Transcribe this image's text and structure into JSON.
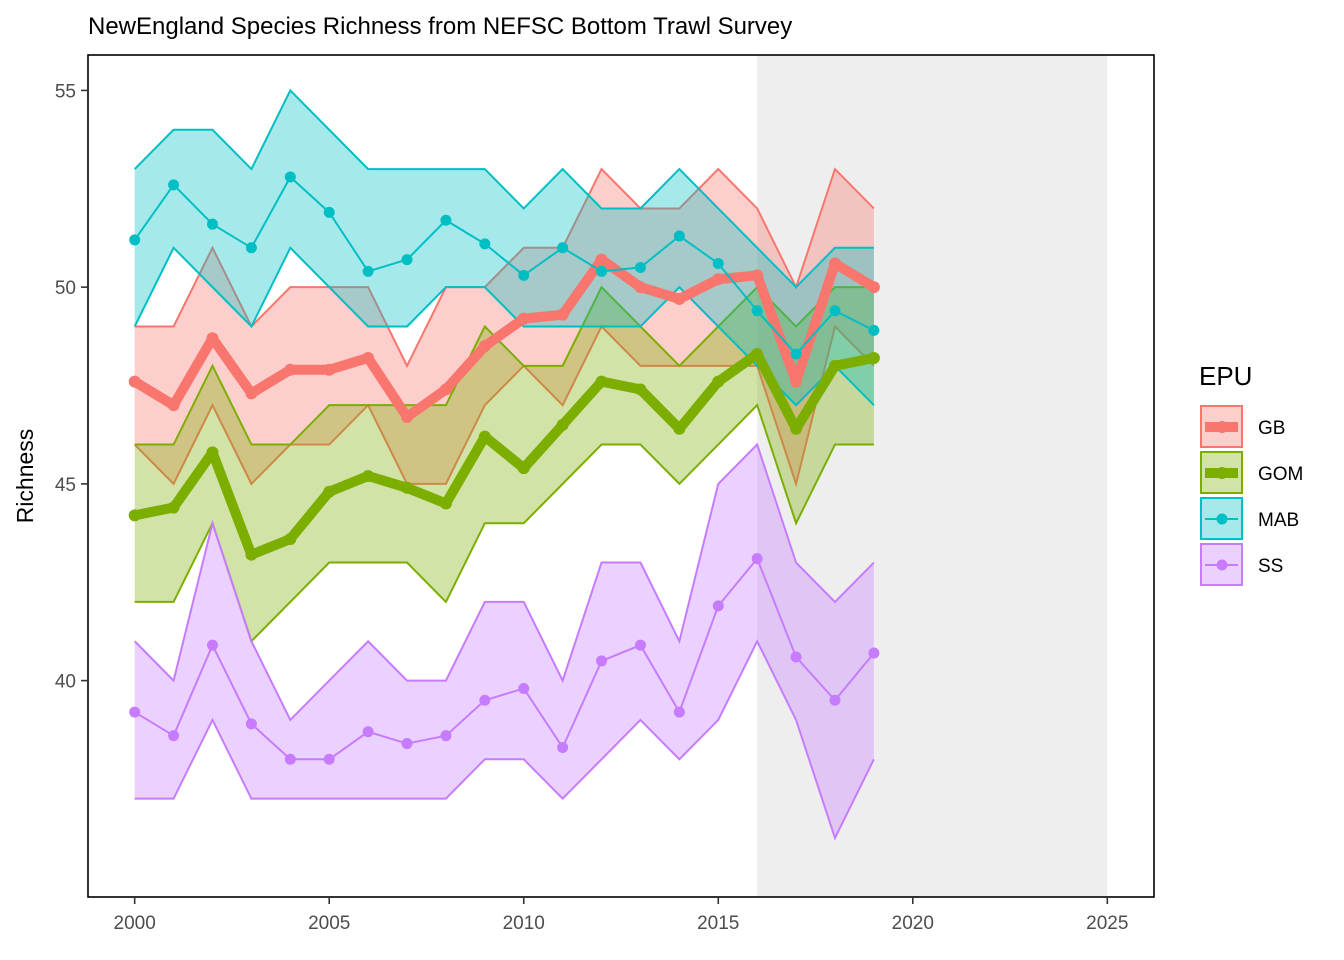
{
  "chart_data": {
    "type": "line",
    "title": "NewEngland Species Richness from NEFSC Bottom Trawl Survey",
    "xlabel": "",
    "ylabel": "Richness",
    "xlim": [
      1998.8,
      2026.2
    ],
    "ylim": [
      34.5,
      55.9
    ],
    "x_ticks": [
      2000,
      2005,
      2010,
      2015,
      2020,
      2025
    ],
    "y_ticks": [
      40,
      45,
      50,
      55
    ],
    "grid": false,
    "shaded_region": {
      "x_start": 2016,
      "x_end": 2025,
      "color": "#eeeeee"
    },
    "legend": {
      "title": "EPU",
      "position": "right"
    },
    "x": [
      2000,
      2001,
      2002,
      2003,
      2004,
      2005,
      2006,
      2007,
      2008,
      2009,
      2010,
      2011,
      2012,
      2013,
      2014,
      2015,
      2016,
      2017,
      2018,
      2019
    ],
    "series": [
      {
        "name": "GB",
        "color": "#F8766D",
        "style": "thick",
        "values": [
          47.6,
          47.0,
          48.7,
          47.3,
          47.9,
          47.9,
          48.2,
          46.7,
          47.4,
          48.5,
          49.2,
          49.3,
          50.7,
          50.0,
          49.7,
          50.2,
          50.3,
          47.6,
          50.6,
          50.0
        ],
        "lower": [
          46.0,
          45.0,
          47.0,
          45.0,
          46.0,
          46.0,
          47.0,
          45.0,
          45.0,
          47.0,
          48.0,
          47.0,
          49.0,
          48.0,
          48.0,
          48.0,
          48.0,
          45.0,
          49.0,
          48.0
        ],
        "upper": [
          49.0,
          49.0,
          51.0,
          49.0,
          50.0,
          50.0,
          50.0,
          48.0,
          50.0,
          50.0,
          51.0,
          51.0,
          53.0,
          52.0,
          52.0,
          53.0,
          52.0,
          50.0,
          53.0,
          52.0
        ]
      },
      {
        "name": "GOM",
        "color": "#7CAE00",
        "style": "thick",
        "values": [
          44.2,
          44.4,
          45.8,
          43.2,
          43.6,
          44.8,
          45.2,
          44.9,
          44.5,
          46.2,
          45.4,
          46.5,
          47.6,
          47.4,
          46.4,
          47.6,
          48.3,
          46.4,
          48.0,
          48.2
        ],
        "lower": [
          42.0,
          42.0,
          44.0,
          41.0,
          42.0,
          43.0,
          43.0,
          43.0,
          42.0,
          44.0,
          44.0,
          45.0,
          46.0,
          46.0,
          45.0,
          46.0,
          47.0,
          44.0,
          46.0,
          46.0
        ],
        "upper": [
          46.0,
          46.0,
          48.0,
          46.0,
          46.0,
          47.0,
          47.0,
          47.0,
          47.0,
          49.0,
          48.0,
          48.0,
          50.0,
          49.0,
          48.0,
          49.0,
          50.0,
          49.0,
          50.0,
          50.0
        ]
      },
      {
        "name": "MAB",
        "color": "#00BFC4",
        "style": "points",
        "values": [
          51.2,
          52.6,
          51.6,
          51.0,
          52.8,
          51.9,
          50.4,
          50.7,
          51.7,
          51.1,
          50.3,
          51.0,
          50.4,
          50.5,
          51.3,
          50.6,
          49.4,
          48.3,
          49.4,
          48.9
        ],
        "lower": [
          49.0,
          51.0,
          50.0,
          49.0,
          51.0,
          50.0,
          49.0,
          49.0,
          50.0,
          50.0,
          49.0,
          49.0,
          49.0,
          49.0,
          50.0,
          49.0,
          48.0,
          47.0,
          48.0,
          47.0
        ],
        "upper": [
          53.0,
          54.0,
          54.0,
          53.0,
          55.0,
          54.0,
          53.0,
          53.0,
          53.0,
          53.0,
          52.0,
          53.0,
          52.0,
          52.0,
          53.0,
          52.0,
          51.0,
          50.0,
          51.0,
          51.0
        ]
      },
      {
        "name": "SS",
        "color": "#C77CFF",
        "style": "points",
        "values": [
          39.2,
          38.6,
          40.9,
          38.9,
          38.0,
          38.0,
          38.7,
          38.4,
          38.6,
          39.5,
          39.8,
          38.3,
          40.5,
          40.9,
          39.2,
          41.9,
          43.1,
          40.6,
          39.5,
          40.7
        ],
        "lower": [
          37.0,
          37.0,
          39.0,
          37.0,
          37.0,
          37.0,
          37.0,
          37.0,
          37.0,
          38.0,
          38.0,
          37.0,
          38.0,
          39.0,
          38.0,
          39.0,
          41.0,
          39.0,
          36.0,
          38.0
        ],
        "upper": [
          41.0,
          40.0,
          44.0,
          41.0,
          39.0,
          40.0,
          41.0,
          40.0,
          40.0,
          42.0,
          42.0,
          40.0,
          43.0,
          43.0,
          41.0,
          45.0,
          46.0,
          43.0,
          42.0,
          43.0
        ]
      }
    ]
  }
}
